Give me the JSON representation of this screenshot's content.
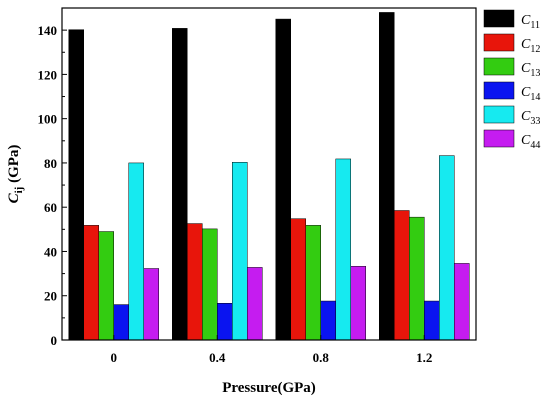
{
  "chart_data": {
    "type": "bar",
    "categories": [
      "0",
      "0.4",
      "0.8",
      "1.2"
    ],
    "xlabel": "Pressure(GPa)",
    "ylabel": "C",
    "ylabel_sub": "ij",
    "ylabel_unit": " (GPa)",
    "ylim": [
      0,
      150
    ],
    "yticks": [
      "0",
      "20",
      "40",
      "60",
      "80",
      "100",
      "120",
      "140"
    ],
    "grid": false,
    "legend_position": "right",
    "series": [
      {
        "name": "C11",
        "label_main": "C",
        "label_sub": "11",
        "color": "#000000",
        "values": [
          140.2,
          140.8,
          145.0,
          148.0
        ]
      },
      {
        "name": "C12",
        "label_main": "C",
        "label_sub": "12",
        "color": "#e8150b",
        "values": [
          51.8,
          52.6,
          54.8,
          58.5
        ]
      },
      {
        "name": "C13",
        "label_main": "C",
        "label_sub": "13",
        "color": "#33cc11",
        "values": [
          49.0,
          50.2,
          51.8,
          55.5
        ]
      },
      {
        "name": "C14",
        "label_main": "C",
        "label_sub": "14",
        "color": "#0a14f0",
        "values": [
          16.0,
          16.6,
          17.6,
          17.6
        ]
      },
      {
        "name": "C33",
        "label_main": "C",
        "label_sub": "33",
        "color": "#16eaf0",
        "values": [
          80.0,
          80.3,
          81.8,
          83.3
        ]
      },
      {
        "name": "C44",
        "label_main": "C",
        "label_sub": "44",
        "color": "#c51cf0",
        "values": [
          32.3,
          32.8,
          33.3,
          34.6
        ]
      }
    ]
  }
}
